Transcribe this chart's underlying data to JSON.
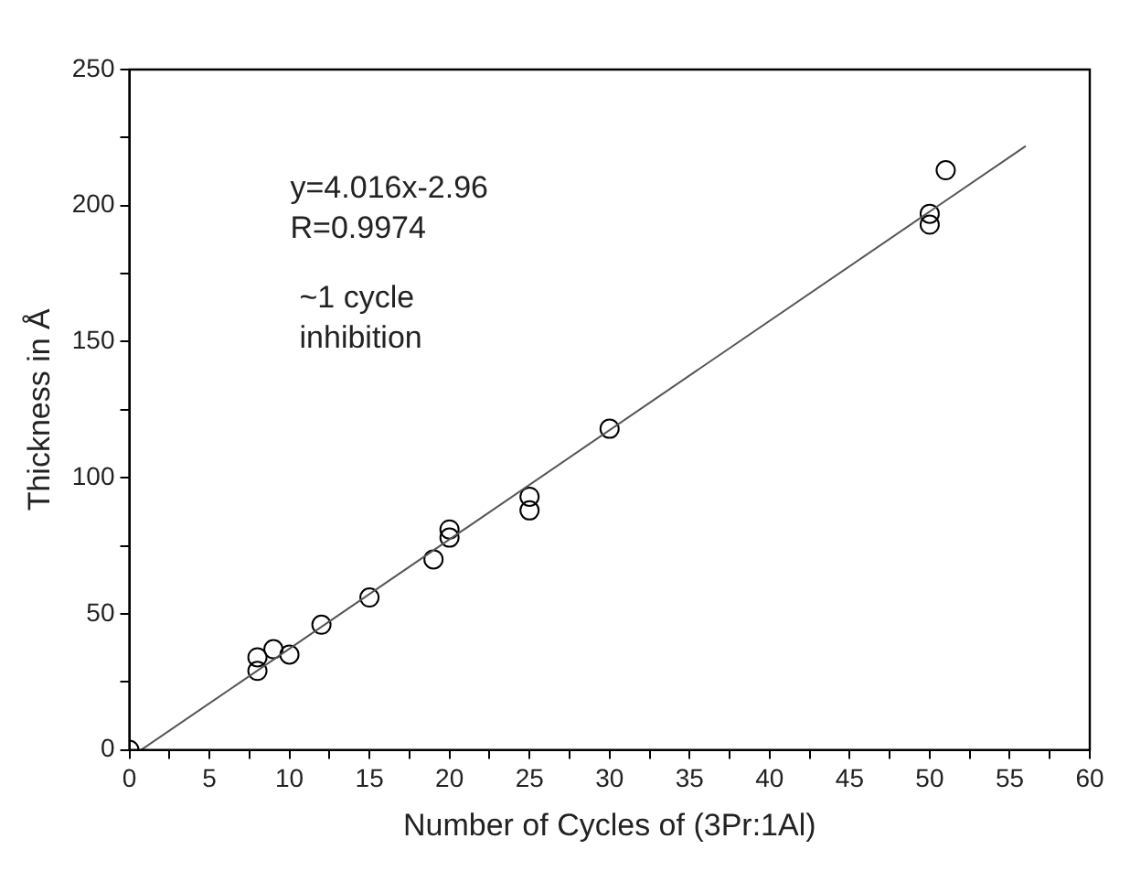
{
  "chart_data": {
    "type": "scatter",
    "xlabel": "Number of Cycles of (3Pr:1Al)",
    "ylabel": "Thickness in Å",
    "annotations": [
      "y=4.016x-2.96",
      "R=0.9974",
      "~1 cycle inhibition"
    ],
    "series": [
      {
        "color": "#000000",
        "x": [
          0,
          8,
          8,
          9,
          10,
          12,
          15,
          19,
          20,
          20,
          25,
          25,
          30,
          50,
          50,
          51
        ],
        "values": [
          0,
          29,
          34,
          37,
          35,
          46,
          56,
          70,
          78,
          81,
          88,
          93,
          118,
          193,
          197,
          213
        ]
      },
      {
        "type": "line",
        "color": "#555555",
        "marker": "none",
        "x": [
          0.74,
          56
        ],
        "values": [
          0,
          221.9
        ]
      }
    ],
    "xlim": [
      0,
      60
    ],
    "ylim": [
      0,
      250
    ],
    "xticks": [
      0,
      {
        "value": 2.5,
        "label": null
      },
      5,
      {
        "value": 7.5,
        "label": null
      },
      10,
      {
        "value": 12.5,
        "label": null
      },
      15,
      {
        "value": 17.5,
        "label": null
      },
      20,
      {
        "value": 22.5,
        "label": null
      },
      25,
      {
        "value": 27.5,
        "label": null
      },
      30,
      {
        "value": 32.5,
        "label": null
      },
      35,
      {
        "value": 37.5,
        "label": null
      },
      40,
      {
        "value": 42.5,
        "label": null
      },
      45,
      {
        "value": 47.5,
        "label": null
      },
      50,
      {
        "value": 52.5,
        "label": null
      },
      55,
      {
        "value": 57.5,
        "label": null
      },
      60
    ],
    "yticks": [
      0,
      {
        "value": 25,
        "label": null
      },
      50,
      {
        "value": 75,
        "label": null
      },
      100,
      {
        "value": 125,
        "label": null
      },
      150,
      {
        "value": 175,
        "label": null
      },
      200,
      {
        "value": 225,
        "label": null
      },
      250
    ],
    "grid": false,
    "legend": false,
    "marker": "circle"
  }
}
